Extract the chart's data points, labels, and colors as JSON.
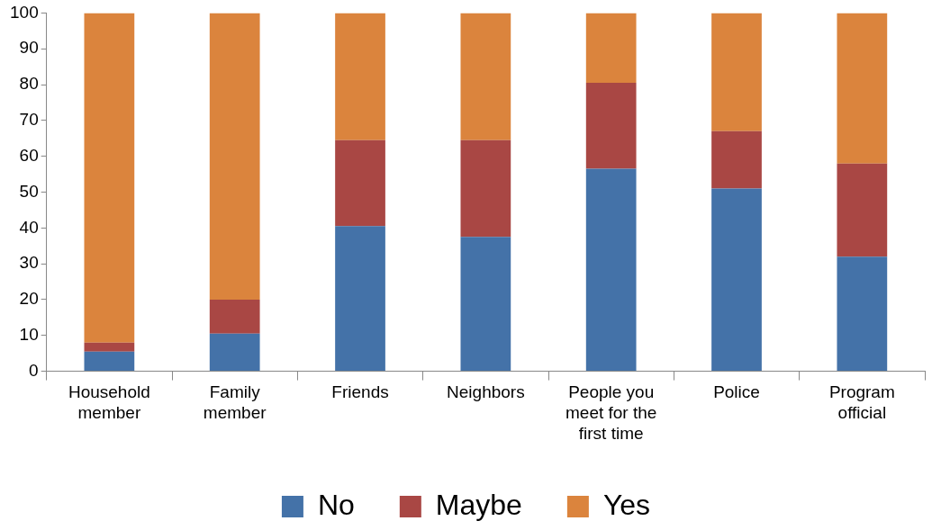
{
  "chart_data": {
    "type": "bar",
    "stacked": true,
    "categories": [
      "Household member",
      "Family member",
      "Friends",
      "Neighbors",
      "People you meet for the first time",
      "Police",
      "Program official"
    ],
    "series": [
      {
        "name": "No",
        "color": "#4472a8",
        "values": [
          5.5,
          10.5,
          40.5,
          37.5,
          56.5,
          51,
          32
        ]
      },
      {
        "name": "Maybe",
        "color": "#a94744",
        "values": [
          2.5,
          9.5,
          24,
          27,
          24,
          16,
          26
        ]
      },
      {
        "name": "Yes",
        "color": "#db843d",
        "values": [
          92,
          80,
          35.5,
          35.5,
          19.5,
          33,
          42
        ]
      }
    ],
    "ylim": [
      0,
      100
    ],
    "yticks": [
      0,
      10,
      20,
      30,
      40,
      50,
      60,
      70,
      80,
      90,
      100
    ],
    "grid": false,
    "legend": "bottom"
  }
}
